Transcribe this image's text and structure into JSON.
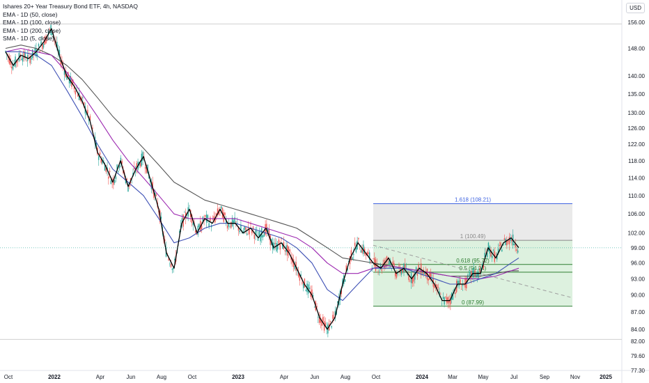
{
  "header": {
    "title": "Ishares 20+ Year Treasury Bond ETF, 4h, NASDAQ",
    "indicators": [
      "EMA - 1D (50, close)",
      "EMA - 1D (100, close)",
      "EMA - 1D (200, close)",
      "SMA - 1D (5, close)"
    ],
    "currency": "USD"
  },
  "colors": {
    "up": "#26a69a",
    "down": "#ef5350",
    "ema50": "#3f51b5",
    "ema100": "#9c27b0",
    "ema200": "#555555",
    "sma5": "#000000",
    "fib_blue_fill": "#cfd8ff",
    "fib_gray_fill": "#e6e6e6",
    "fib_green_fill": "#d7efd9",
    "fib_blue_line": "#3f63e0",
    "fib_gray_line": "#888888",
    "fib_green_line": "#2e7d32"
  },
  "chart_data": {
    "type": "line",
    "title": "Ishares 20+ Year Treasury Bond ETF, 4h, NASDAQ",
    "ylim": [
      77.3,
      160
    ],
    "y_scale": "log",
    "grid": false,
    "legend": "top-left",
    "y_ticks": [
      "156.00",
      "148.00",
      "140.00",
      "135.00",
      "130.00",
      "126.00",
      "122.00",
      "118.00",
      "114.00",
      "110.00",
      "106.00",
      "102.00",
      "99.00",
      "96.00",
      "93.00",
      "90.00",
      "87.00",
      "84.00",
      "82.00",
      "79.60",
      "77.30"
    ],
    "x_ticks": [
      {
        "label": "Oct",
        "t": 0,
        "bold": false
      },
      {
        "label": "2022",
        "t": 3,
        "bold": true
      },
      {
        "label": "Apr",
        "t": 6,
        "bold": false
      },
      {
        "label": "Jun",
        "t": 8,
        "bold": false
      },
      {
        "label": "Aug",
        "t": 10,
        "bold": false
      },
      {
        "label": "Oct",
        "t": 12,
        "bold": false
      },
      {
        "label": "2023",
        "t": 15,
        "bold": true
      },
      {
        "label": "Apr",
        "t": 18,
        "bold": false
      },
      {
        "label": "Jun",
        "t": 20,
        "bold": false
      },
      {
        "label": "Aug",
        "t": 22,
        "bold": false
      },
      {
        "label": "Oct",
        "t": 24,
        "bold": false
      },
      {
        "label": "2024",
        "t": 27,
        "bold": true
      },
      {
        "label": "Mar",
        "t": 29,
        "bold": false
      },
      {
        "label": "May",
        "t": 31,
        "bold": false
      },
      {
        "label": "Jul",
        "t": 33,
        "bold": false
      },
      {
        "label": "Sep",
        "t": 35,
        "bold": false
      },
      {
        "label": "Nov",
        "t": 37,
        "bold": false
      },
      {
        "label": "2025",
        "t": 39,
        "bold": true
      }
    ],
    "series": [
      {
        "key": "sma5",
        "values": [
          [
            0,
            147
          ],
          [
            0.5,
            143
          ],
          [
            1,
            146
          ],
          [
            1.5,
            145
          ],
          [
            2,
            147
          ],
          [
            2.5,
            150
          ],
          [
            3,
            154
          ],
          [
            3.5,
            146
          ],
          [
            4,
            140
          ],
          [
            4.5,
            137
          ],
          [
            5,
            133
          ],
          [
            5.5,
            128
          ],
          [
            6,
            120
          ],
          [
            6.5,
            117
          ],
          [
            7,
            113
          ],
          [
            7.5,
            118
          ],
          [
            8,
            112
          ],
          [
            8.5,
            116
          ],
          [
            9,
            119
          ],
          [
            9.5,
            113
          ],
          [
            10,
            107
          ],
          [
            10.5,
            98
          ],
          [
            11,
            95
          ],
          [
            11.5,
            104
          ],
          [
            12,
            107
          ],
          [
            12.5,
            102
          ],
          [
            13,
            105
          ],
          [
            13.5,
            104
          ],
          [
            14,
            107
          ],
          [
            14.5,
            104
          ],
          [
            15,
            104
          ],
          [
            15.5,
            102
          ],
          [
            16,
            103
          ],
          [
            16.5,
            101
          ],
          [
            17,
            103
          ],
          [
            17.5,
            99
          ],
          [
            18,
            100
          ],
          [
            18.5,
            98
          ],
          [
            19,
            95
          ],
          [
            19.5,
            92
          ],
          [
            20,
            90
          ],
          [
            20.5,
            86
          ],
          [
            21,
            84
          ],
          [
            21.5,
            86
          ],
          [
            22,
            92
          ],
          [
            22.5,
            97
          ],
          [
            23,
            100
          ],
          [
            23.5,
            98
          ],
          [
            24,
            96
          ],
          [
            24.5,
            95
          ],
          [
            25,
            97
          ],
          [
            25.5,
            94
          ],
          [
            26,
            95
          ],
          [
            26.5,
            93
          ],
          [
            27,
            95
          ],
          [
            27.5,
            94
          ],
          [
            28,
            92
          ],
          [
            28.5,
            89
          ],
          [
            29,
            89
          ],
          [
            29.5,
            92
          ],
          [
            30,
            92
          ],
          [
            30.5,
            94
          ],
          [
            31,
            94
          ],
          [
            31.5,
            99
          ],
          [
            32,
            97
          ],
          [
            32.5,
            100
          ],
          [
            33,
            101
          ],
          [
            33.5,
            99
          ]
        ]
      },
      {
        "key": "ema50",
        "values": [
          [
            0,
            147
          ],
          [
            1,
            147
          ],
          [
            2,
            146
          ],
          [
            3,
            143
          ],
          [
            4,
            136
          ],
          [
            5,
            129
          ],
          [
            6,
            122
          ],
          [
            7,
            116
          ],
          [
            8,
            113
          ],
          [
            9,
            110
          ],
          [
            10,
            105
          ],
          [
            11,
            100
          ],
          [
            12,
            101
          ],
          [
            13,
            103
          ],
          [
            14,
            104
          ],
          [
            15,
            104
          ],
          [
            16,
            103
          ],
          [
            17,
            102
          ],
          [
            18,
            101
          ],
          [
            19,
            99
          ],
          [
            20,
            96
          ],
          [
            21,
            91
          ],
          [
            22,
            89
          ],
          [
            23,
            92
          ],
          [
            24,
            95
          ],
          [
            25,
            95
          ],
          [
            26,
            95
          ],
          [
            27,
            94
          ],
          [
            28,
            93
          ],
          [
            29,
            92
          ],
          [
            30,
            92
          ],
          [
            31,
            93
          ],
          [
            32,
            94
          ],
          [
            33,
            96
          ],
          [
            33.5,
            97
          ]
        ]
      },
      {
        "key": "ema100",
        "values": [
          [
            0,
            147
          ],
          [
            1,
            148
          ],
          [
            2,
            147
          ],
          [
            3,
            146
          ],
          [
            4,
            141
          ],
          [
            5,
            135
          ],
          [
            6,
            129
          ],
          [
            7,
            123
          ],
          [
            8,
            118
          ],
          [
            9,
            114
          ],
          [
            10,
            110
          ],
          [
            11,
            106
          ],
          [
            12,
            105
          ],
          [
            13,
            105
          ],
          [
            14,
            105
          ],
          [
            15,
            105
          ],
          [
            16,
            104
          ],
          [
            17,
            103
          ],
          [
            18,
            102
          ],
          [
            19,
            101
          ],
          [
            20,
            99
          ],
          [
            21,
            96
          ],
          [
            22,
            94
          ],
          [
            23,
            94
          ],
          [
            24,
            95
          ],
          [
            25,
            95.5
          ],
          [
            26,
            95
          ],
          [
            27,
            94.5
          ],
          [
            28,
            94
          ],
          [
            29,
            93.5
          ],
          [
            30,
            93
          ],
          [
            31,
            93
          ],
          [
            32,
            93.5
          ],
          [
            33,
            94.5
          ],
          [
            33.5,
            95
          ]
        ]
      },
      {
        "key": "ema200",
        "values": [
          [
            0,
            148
          ],
          [
            1,
            149
          ],
          [
            2,
            148
          ],
          [
            3,
            146
          ],
          [
            4,
            143
          ],
          [
            5,
            139
          ],
          [
            6,
            134
          ],
          [
            7,
            129
          ],
          [
            8,
            125
          ],
          [
            9,
            121
          ],
          [
            10,
            117
          ],
          [
            11,
            113
          ],
          [
            12,
            111
          ],
          [
            13,
            109
          ],
          [
            14,
            108
          ],
          [
            15,
            107
          ],
          [
            16,
            106
          ],
          [
            17,
            105
          ],
          [
            18,
            104
          ],
          [
            19,
            103
          ],
          [
            20,
            101
          ],
          [
            21,
            99
          ],
          [
            22,
            97
          ],
          [
            23,
            96.5
          ],
          [
            24,
            96
          ],
          [
            25,
            95.5
          ],
          [
            26,
            95
          ],
          [
            27,
            94.5
          ],
          [
            28,
            94
          ],
          [
            29,
            93.5
          ],
          [
            30,
            93.5
          ],
          [
            31,
            93.5
          ],
          [
            32,
            94
          ],
          [
            33,
            94.5
          ],
          [
            33.5,
            94.5
          ]
        ]
      }
    ],
    "last_price": 99,
    "trendlines": [
      {
        "name": "horizontal-line",
        "y": 155.5
      },
      {
        "name": "horizontal-line",
        "y": 82.3
      }
    ],
    "dashed_trendline": {
      "from": [
        24,
        99.5
      ],
      "to": [
        37,
        89.5
      ]
    },
    "fibonacci": {
      "t_start": 24,
      "t_end": 37,
      "levels": [
        {
          "ratio": 1.618,
          "price": 108.21,
          "label": "1.618 (108.21)",
          "zone": "blue"
        },
        {
          "ratio": 1,
          "price": 100.49,
          "label": "1 (100.49)",
          "zone": "gray"
        },
        {
          "ratio": 0.618,
          "price": 95.72,
          "label": "0.618 (95.72)",
          "zone": "green"
        },
        {
          "ratio": 0.5,
          "price": 94.24,
          "label": "0.5 (94.24)",
          "zone": "green"
        },
        {
          "ratio": 0,
          "price": 87.99,
          "label": "0 (87.99)",
          "zone": "green"
        }
      ]
    }
  }
}
